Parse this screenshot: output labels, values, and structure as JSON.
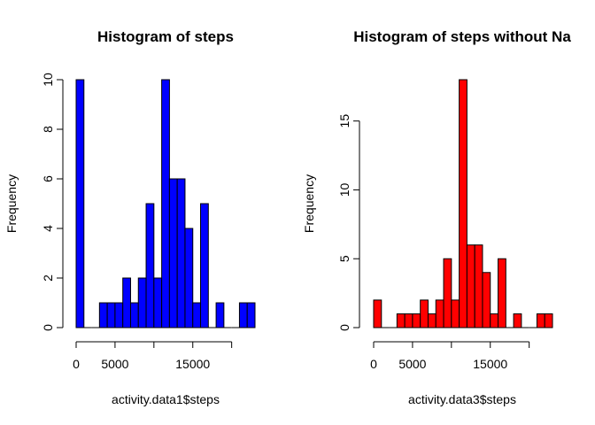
{
  "chart_data": [
    {
      "type": "histogram",
      "title": "Histogram of steps",
      "xlabel": "activity.data1$steps",
      "ylabel": "Frequency",
      "color": "#0000FF",
      "bin_width": 1000,
      "bin_start": 0,
      "values": [
        10,
        0,
        0,
        1,
        1,
        1,
        2,
        1,
        2,
        5,
        2,
        10,
        6,
        6,
        4,
        1,
        5,
        0,
        1,
        0,
        0,
        1,
        1
      ],
      "xlim": [
        0,
        23000
      ],
      "ylim": [
        0,
        10
      ],
      "x_ticks": [
        0,
        5000,
        15000
      ],
      "x_tick_marks": [
        0,
        5000,
        10000,
        15000,
        20000
      ],
      "y_ticks": [
        0,
        2,
        4,
        6,
        8,
        10
      ]
    },
    {
      "type": "histogram",
      "title": "Histogram of steps without Na",
      "xlabel": "activity.data3$steps",
      "ylabel": "Frequency",
      "color": "#FF0000",
      "bin_width": 1000,
      "bin_start": 0,
      "values": [
        2,
        0,
        0,
        1,
        1,
        1,
        2,
        1,
        2,
        5,
        2,
        18,
        6,
        6,
        4,
        1,
        5,
        0,
        1,
        0,
        0,
        1,
        1
      ],
      "xlim": [
        0,
        23000
      ],
      "ylim": [
        0,
        18
      ],
      "x_ticks": [
        0,
        5000,
        15000
      ],
      "x_tick_marks": [
        0,
        5000,
        10000,
        15000,
        20000
      ],
      "y_ticks": [
        0,
        5,
        10,
        15
      ]
    }
  ]
}
